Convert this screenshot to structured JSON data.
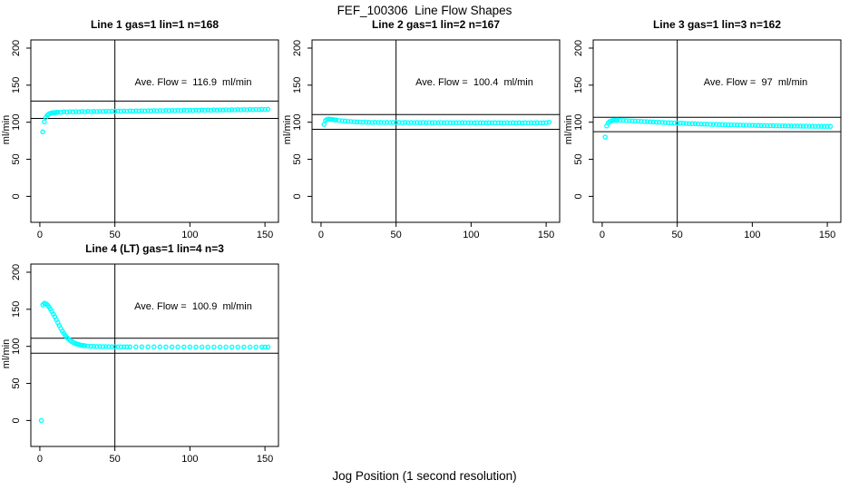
{
  "figure": {
    "title": "FEF_100306  Line Flow Shapes",
    "xlabel": "Jog Position (1 second resolution)",
    "background_color": "#ffffff",
    "axis_color": "#000000",
    "point_color": "#00ffff"
  },
  "chart_data": [
    {
      "type": "scatter",
      "title": "Line 1 gas=1 lin=1 n=168",
      "annotation": "Ave. Flow =  116.9  ml/min",
      "ave_flow_ml_min": 116.9,
      "ylabel": "ml/min",
      "xlim": [
        -6,
        159
      ],
      "ylim": [
        -35,
        211
      ],
      "x_ticks": [
        0,
        50,
        100,
        150
      ],
      "y_ticks": [
        0,
        50,
        100,
        150,
        200
      ],
      "vline_x": 50,
      "hlines": [
        128.6,
        105.2
      ],
      "grid": false,
      "points": [
        [
          2,
          87
        ],
        [
          3,
          100.5
        ],
        [
          4,
          106.5
        ],
        [
          5,
          109.5
        ],
        [
          6,
          111
        ],
        [
          7,
          112
        ],
        [
          8,
          112.5
        ],
        [
          9,
          113
        ],
        [
          10,
          113
        ],
        [
          11,
          113.2
        ],
        [
          12,
          113.4
        ],
        [
          14,
          113.5
        ],
        [
          16,
          114
        ],
        [
          18,
          113.7
        ],
        [
          20,
          114.2
        ],
        [
          22,
          113.9
        ],
        [
          24,
          114.3
        ],
        [
          26,
          114
        ],
        [
          28,
          114.4
        ],
        [
          30,
          114.1
        ],
        [
          32,
          114.5
        ],
        [
          34,
          114.2
        ],
        [
          36,
          114.6
        ],
        [
          38,
          114.3
        ],
        [
          40,
          114.7
        ],
        [
          42,
          114.4
        ],
        [
          44,
          114.8
        ],
        [
          46,
          114.5
        ],
        [
          48,
          114.9
        ],
        [
          50,
          114.6
        ],
        [
          52,
          115
        ],
        [
          54,
          114.7
        ],
        [
          56,
          115.1
        ],
        [
          58,
          114.8
        ],
        [
          60,
          115.2
        ],
        [
          62,
          114.9
        ],
        [
          64,
          115.3
        ],
        [
          66,
          115
        ],
        [
          68,
          115.4
        ],
        [
          70,
          115.1
        ],
        [
          72,
          115.5
        ],
        [
          74,
          115.2
        ],
        [
          76,
          115.6
        ],
        [
          78,
          115.3
        ],
        [
          80,
          115.7
        ],
        [
          82,
          115.4
        ],
        [
          84,
          115.8
        ],
        [
          86,
          115.5
        ],
        [
          88,
          115.9
        ],
        [
          90,
          115.6
        ],
        [
          92,
          116
        ],
        [
          94,
          115.7
        ],
        [
          96,
          116.1
        ],
        [
          98,
          115.8
        ],
        [
          100,
          116.2
        ],
        [
          102,
          115.9
        ],
        [
          104,
          116.3
        ],
        [
          106,
          116
        ],
        [
          108,
          116.4
        ],
        [
          110,
          116.1
        ],
        [
          112,
          116.5
        ],
        [
          114,
          116.2
        ],
        [
          116,
          116.6
        ],
        [
          118,
          116.3
        ],
        [
          120,
          116.7
        ],
        [
          122,
          116.4
        ],
        [
          124,
          116.8
        ],
        [
          126,
          116.5
        ],
        [
          128,
          116.9
        ],
        [
          130,
          116.6
        ],
        [
          132,
          117
        ],
        [
          134,
          116.7
        ],
        [
          136,
          117.1
        ],
        [
          138,
          116.8
        ],
        [
          140,
          117.2
        ],
        [
          142,
          116.9
        ],
        [
          144,
          117.3
        ],
        [
          146,
          117
        ],
        [
          148,
          117.4
        ],
        [
          150,
          117.1
        ],
        [
          152,
          117.5
        ]
      ]
    },
    {
      "type": "scatter",
      "title": "Line 2 gas=1 lin=2 n=167",
      "annotation": "Ave. Flow =  100.4  ml/min",
      "ave_flow_ml_min": 100.4,
      "ylabel": "ml/min",
      "xlim": [
        -6,
        159
      ],
      "ylim": [
        -35,
        211
      ],
      "x_ticks": [
        0,
        50,
        100,
        150
      ],
      "y_ticks": [
        0,
        50,
        100,
        150,
        200
      ],
      "vline_x": 50,
      "hlines": [
        110.4,
        90.4
      ],
      "grid": false,
      "points": [
        [
          2,
          97
        ],
        [
          3,
          102.5
        ],
        [
          4,
          103.8
        ],
        [
          5,
          104.2
        ],
        [
          6,
          104
        ],
        [
          7,
          103.8
        ],
        [
          8,
          103.5
        ],
        [
          9,
          103.2
        ],
        [
          10,
          103
        ],
        [
          12,
          102.5
        ],
        [
          14,
          102
        ],
        [
          16,
          101.6
        ],
        [
          18,
          101.2
        ],
        [
          20,
          100.9
        ],
        [
          22,
          100.6
        ],
        [
          24,
          100.4
        ],
        [
          26,
          100.2
        ],
        [
          28,
          100.1
        ],
        [
          30,
          100
        ],
        [
          32,
          99.9
        ],
        [
          34,
          99.6
        ],
        [
          36,
          99.9
        ],
        [
          38,
          99.6
        ],
        [
          40,
          99.8
        ],
        [
          42,
          99.5
        ],
        [
          44,
          99.8
        ],
        [
          46,
          99.5
        ],
        [
          48,
          99.7
        ],
        [
          50,
          99.5
        ],
        [
          52,
          99.7
        ],
        [
          54,
          99.4
        ],
        [
          56,
          99.7
        ],
        [
          58,
          99.4
        ],
        [
          60,
          99.6
        ],
        [
          62,
          99.4
        ],
        [
          64,
          99.6
        ],
        [
          66,
          99.3
        ],
        [
          68,
          99.6
        ],
        [
          70,
          99.3
        ],
        [
          72,
          99.5
        ],
        [
          74,
          99.3
        ],
        [
          76,
          99.5
        ],
        [
          78,
          99.3
        ],
        [
          80,
          99.5
        ],
        [
          82,
          99.2
        ],
        [
          84,
          99.5
        ],
        [
          86,
          99.2
        ],
        [
          88,
          99.4
        ],
        [
          90,
          99.2
        ],
        [
          92,
          99.4
        ],
        [
          94,
          99.2
        ],
        [
          96,
          99.4
        ],
        [
          98,
          99.2
        ],
        [
          100,
          99.4
        ],
        [
          102,
          99.1
        ],
        [
          104,
          99.4
        ],
        [
          106,
          99.1
        ],
        [
          108,
          99.3
        ],
        [
          110,
          99.1
        ],
        [
          112,
          99.3
        ],
        [
          114,
          99.1
        ],
        [
          116,
          99.3
        ],
        [
          118,
          99.1
        ],
        [
          120,
          99.3
        ],
        [
          122,
          99
        ],
        [
          124,
          99.3
        ],
        [
          126,
          99
        ],
        [
          128,
          99.2
        ],
        [
          130,
          99
        ],
        [
          132,
          99.2
        ],
        [
          134,
          99
        ],
        [
          136,
          99.2
        ],
        [
          138,
          99
        ],
        [
          140,
          99.2
        ],
        [
          142,
          99
        ],
        [
          144,
          99.2
        ],
        [
          146,
          99
        ],
        [
          148,
          99.1
        ],
        [
          150,
          99.4
        ],
        [
          152,
          100
        ]
      ]
    },
    {
      "type": "scatter",
      "title": "Line 3 gas=1 lin=3 n=162",
      "annotation": "Ave. Flow =  97  ml/min",
      "ave_flow_ml_min": 97,
      "ylabel": "ml/min",
      "xlim": [
        -6,
        159
      ],
      "ylim": [
        -35,
        211
      ],
      "x_ticks": [
        0,
        50,
        100,
        150
      ],
      "y_ticks": [
        0,
        50,
        100,
        150,
        200
      ],
      "vline_x": 50,
      "hlines": [
        106.7,
        87.3
      ],
      "grid": false,
      "points": [
        [
          2,
          80
        ],
        [
          3,
          95
        ],
        [
          4,
          99
        ],
        [
          5,
          100.8
        ],
        [
          6,
          101.8
        ],
        [
          7,
          102.3
        ],
        [
          8,
          102.6
        ],
        [
          9,
          102.7
        ],
        [
          10,
          102.8
        ],
        [
          12,
          102.6
        ],
        [
          14,
          102.4
        ],
        [
          16,
          102.2
        ],
        [
          18,
          102
        ],
        [
          20,
          101.8
        ],
        [
          22,
          101.5
        ],
        [
          24,
          101.3
        ],
        [
          26,
          101.1
        ],
        [
          28,
          100.9
        ],
        [
          30,
          100.7
        ],
        [
          32,
          100.5
        ],
        [
          34,
          100.3
        ],
        [
          36,
          100.1
        ],
        [
          38,
          99.9
        ],
        [
          40,
          99.7
        ],
        [
          42,
          99.5
        ],
        [
          44,
          99.3
        ],
        [
          46,
          99.1
        ],
        [
          48,
          99
        ],
        [
          50,
          98.8
        ],
        [
          52,
          98.6
        ],
        [
          54,
          98.5
        ],
        [
          56,
          98.3
        ],
        [
          58,
          98.2
        ],
        [
          60,
          98
        ],
        [
          62,
          97.9
        ],
        [
          64,
          97.7
        ],
        [
          66,
          97.6
        ],
        [
          68,
          97.5
        ],
        [
          70,
          97.3
        ],
        [
          72,
          97.2
        ],
        [
          74,
          97.1
        ],
        [
          76,
          97
        ],
        [
          78,
          96.8
        ],
        [
          80,
          96.7
        ],
        [
          82,
          96.6
        ],
        [
          84,
          96.5
        ],
        [
          86,
          96.4
        ],
        [
          88,
          96.3
        ],
        [
          90,
          96.2
        ],
        [
          92,
          96.1
        ],
        [
          94,
          96
        ],
        [
          96,
          95.9
        ],
        [
          98,
          95.8
        ],
        [
          100,
          95.8
        ],
        [
          102,
          95.7
        ],
        [
          104,
          95.6
        ],
        [
          106,
          95.5
        ],
        [
          108,
          95.5
        ],
        [
          110,
          95.4
        ],
        [
          112,
          95.3
        ],
        [
          114,
          95.3
        ],
        [
          116,
          95.2
        ],
        [
          118,
          95.1
        ],
        [
          120,
          95.1
        ],
        [
          122,
          95
        ],
        [
          124,
          95
        ],
        [
          126,
          94.9
        ],
        [
          128,
          94.9
        ],
        [
          130,
          94.8
        ],
        [
          132,
          94.8
        ],
        [
          134,
          94.7
        ],
        [
          136,
          94.7
        ],
        [
          138,
          94.6
        ],
        [
          140,
          94.6
        ],
        [
          142,
          94.5
        ],
        [
          144,
          94.5
        ],
        [
          146,
          94.5
        ],
        [
          148,
          94.4
        ],
        [
          150,
          94.4
        ],
        [
          152,
          94.4
        ]
      ]
    },
    {
      "type": "scatter",
      "title": "Line 4 (LT) gas=1 lin=4 n=3",
      "annotation": "Ave. Flow =  100.9  ml/min",
      "ave_flow_ml_min": 100.9,
      "ylabel": "ml/min",
      "xlim": [
        -6,
        159
      ],
      "ylim": [
        -35,
        211
      ],
      "x_ticks": [
        0,
        50,
        100,
        150
      ],
      "y_ticks": [
        0,
        50,
        100,
        150,
        200
      ],
      "vline_x": 50,
      "hlines": [
        111.0,
        90.8
      ],
      "grid": false,
      "points": [
        [
          1,
          0
        ],
        [
          2,
          156
        ],
        [
          3,
          158
        ],
        [
          4,
          157.5
        ],
        [
          5,
          156
        ],
        [
          6,
          153.5
        ],
        [
          7,
          150.5
        ],
        [
          8,
          147
        ],
        [
          9,
          143.5
        ],
        [
          10,
          140
        ],
        [
          11,
          136
        ],
        [
          12,
          132
        ],
        [
          13,
          128
        ],
        [
          14,
          124
        ],
        [
          15,
          120.5
        ],
        [
          16,
          117.5
        ],
        [
          17,
          114.5
        ],
        [
          18,
          112
        ],
        [
          19,
          110
        ],
        [
          20,
          108.2
        ],
        [
          21,
          106.8
        ],
        [
          22,
          105.5
        ],
        [
          23,
          104.5
        ],
        [
          24,
          103.6
        ],
        [
          25,
          102.9
        ],
        [
          26,
          102.3
        ],
        [
          27,
          101.8
        ],
        [
          28,
          101.4
        ],
        [
          29,
          101.1
        ],
        [
          30,
          100.8
        ],
        [
          32,
          100.4
        ],
        [
          34,
          100.1
        ],
        [
          36,
          99.9
        ],
        [
          38,
          99.8
        ],
        [
          40,
          99.7
        ],
        [
          42,
          99.6
        ],
        [
          44,
          99.6
        ],
        [
          46,
          99.5
        ],
        [
          48,
          99.5
        ],
        [
          50,
          99.5
        ],
        [
          52,
          99.4
        ],
        [
          54,
          99.4
        ],
        [
          56,
          99.4
        ],
        [
          58,
          99.3
        ],
        [
          60,
          99.3
        ],
        [
          64,
          99.3
        ],
        [
          68,
          99.2
        ],
        [
          72,
          99.2
        ],
        [
          76,
          99.2
        ],
        [
          80,
          99.2
        ],
        [
          84,
          99.1
        ],
        [
          88,
          99.1
        ],
        [
          92,
          99.1
        ],
        [
          96,
          99.1
        ],
        [
          100,
          99.1
        ],
        [
          104,
          99
        ],
        [
          108,
          99
        ],
        [
          112,
          99
        ],
        [
          116,
          99
        ],
        [
          120,
          99
        ],
        [
          124,
          99
        ],
        [
          128,
          99
        ],
        [
          132,
          99
        ],
        [
          136,
          99
        ],
        [
          140,
          99
        ],
        [
          144,
          99
        ],
        [
          148,
          99
        ],
        [
          150,
          99
        ],
        [
          152,
          99
        ]
      ]
    }
  ]
}
